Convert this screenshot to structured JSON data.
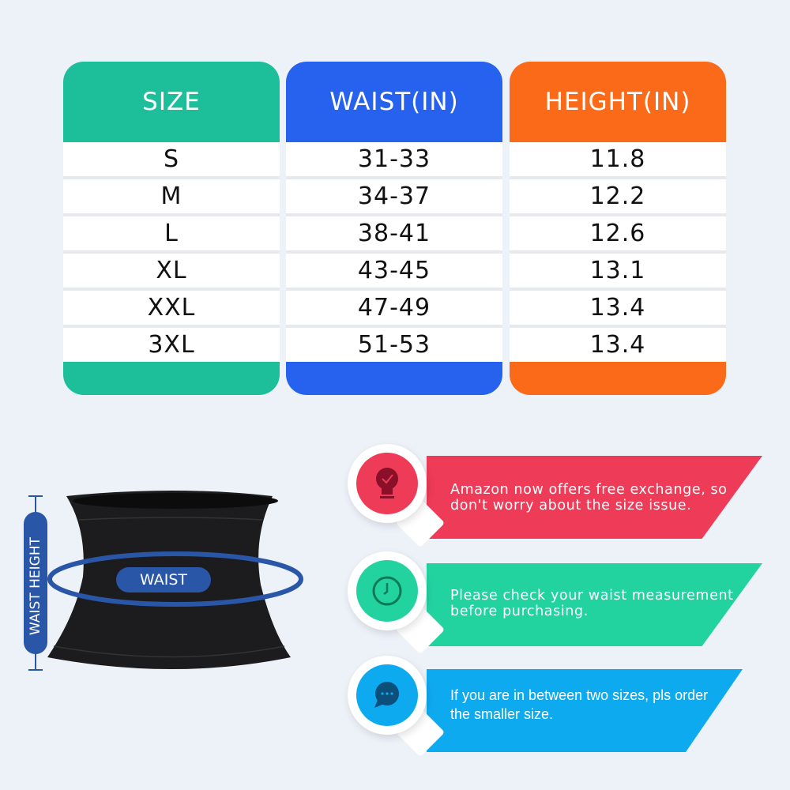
{
  "size_table": {
    "columns": [
      {
        "header": "SIZE",
        "color": "#1cbf9a",
        "values": [
          "S",
          "M",
          "L",
          "XL",
          "XXL",
          "3XL"
        ]
      },
      {
        "header": "WAIST(IN)",
        "color": "#2762ee",
        "values": [
          "31-33",
          "34-37",
          "38-41",
          "43-45",
          "47-49",
          "51-53"
        ]
      },
      {
        "header": "HEIGHT(IN)",
        "color": "#fb6a19",
        "values": [
          "11.8",
          "12.2",
          "12.6",
          "13.1",
          "13.4",
          "13.4"
        ]
      }
    ]
  },
  "diagram": {
    "height_label": "WAIST HEIGHT",
    "waist_label": "WAIST",
    "accent": "#2a56a8"
  },
  "tips": [
    {
      "icon": "lightbulb-check-icon",
      "color": "#ee3b57",
      "text_line1": "Amazon now offers free exchange, so",
      "text_line2": "don't worry about the size issue."
    },
    {
      "icon": "clock-icon",
      "color": "#22d3a0",
      "text_line1": "Please check your waist measurement",
      "text_line2": "before purchasing."
    },
    {
      "icon": "chat-bubble-icon",
      "color": "#0eaaf0",
      "text_line1": "If you are in between two sizes, pls order",
      "text_line2": "the smaller size."
    }
  ]
}
